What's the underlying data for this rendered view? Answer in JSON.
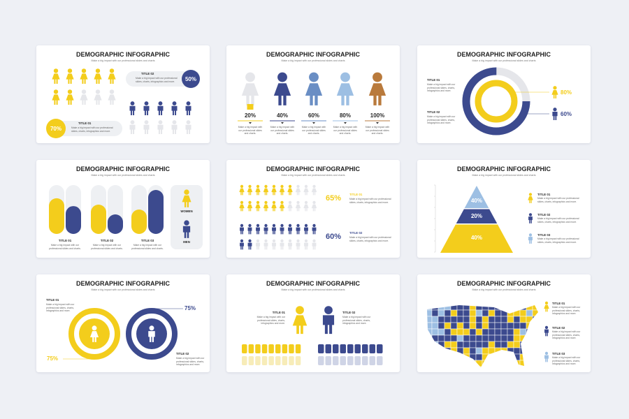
{
  "slides": [
    {
      "title": "DEMOGRAPHIC INFOGRAPHIC",
      "subtitle": "Make a big impact with our professional slides and charts",
      "titles": [
        "TITLE 02",
        "TITLE 01"
      ],
      "texts": [
        "Make a big impact with our professional slides, charts, infographics and more.",
        "Make a big impact with our professional slides, charts, infographics and more."
      ],
      "percents": [
        "50%",
        "70%"
      ]
    },
    {
      "title": "DEMOGRAPHIC INFOGRAPHIC",
      "subtitle": "Make a big impact with our professional slides and charts",
      "percents": [
        "20%",
        "40%",
        "60%",
        "80%",
        "100%"
      ],
      "texts": [
        "Make a big impact with our professional slides and charts.",
        "Make a big impact with our professional slides and charts.",
        "Make a big impact with our professional slides and charts.",
        "Make a big impact with our professional slides and charts.",
        "Make a big impact with our professional slides and charts."
      ]
    },
    {
      "title": "DEMOGRAPHIC INFOGRAPHIC",
      "subtitle": "Make a big impact with our professional slides and charts",
      "titles": [
        "TITLE 01",
        "TITLE 02"
      ],
      "texts": [
        "Make a big impact with our professional slides, charts, infographics and more.",
        "Make a big impact with our professional slides, charts, infographics and more."
      ],
      "percents": [
        "80%",
        "60%"
      ]
    },
    {
      "title": "DEMOGRAPHIC INFOGRAPHIC",
      "subtitle": "Make a big impact with our professional slides and charts",
      "titles": [
        "TITLE 01",
        "TITLE 02",
        "TITLE 03"
      ],
      "texts": [
        "Make a big impact with our professional slides and charts.",
        "Make a big impact with our professional slides and charts.",
        "Make a big impact with our professional slides and charts."
      ],
      "legend": [
        "WOMEN",
        "MEN"
      ]
    },
    {
      "title": "DEMOGRAPHIC INFOGRAPHIC",
      "subtitle": "Make a big impact with our professional slides and charts",
      "percents": [
        "65%",
        "60%"
      ],
      "titles": [
        "TITLE 01",
        "TITLE 02"
      ],
      "texts": [
        "Make a big impact with our professional slides, charts, infographics and more.",
        "Make a big impact with our professional slides, charts, infographics and more."
      ]
    },
    {
      "title": "DEMOGRAPHIC INFOGRAPHIC",
      "subtitle": "Make a big impact with our professional slides and charts",
      "percents": [
        "40%",
        "20%",
        "40%"
      ],
      "titles": [
        "TITLE 01",
        "TITLE 02",
        "TITLE 03"
      ],
      "texts": [
        "Make a big impact with our professional slides, charts, infographics and more.",
        "Make a big impact with our professional slides, charts, infographics and more.",
        "Make a big impact with our professional slides, charts, infographics and more."
      ]
    },
    {
      "title": "DEMOGRAPHIC INFOGRAPHIC",
      "subtitle": "Make a big impact with our professional slides and charts",
      "titles": [
        "TITLE 01",
        "TITLE 02"
      ],
      "texts": [
        "Make a big impact with our professional slides, charts, infographics and more.",
        "Make a big impact with our professional slides, charts, infographics and more."
      ],
      "percents": [
        "75%",
        "75%"
      ]
    },
    {
      "title": "DEMOGRAPHIC INFOGRAPHIC",
      "subtitle": "Make a big impact with our professional slides and charts",
      "titles": [
        "TITLE 01",
        "TITLE 02"
      ],
      "texts": [
        "Make a big impact with our professional slides, charts, infographics and more.",
        "Make a big impact with our professional slides, charts, infographics and more."
      ]
    },
    {
      "title": "DEMOGRAPHIC INFOGRAPHIC",
      "subtitle": "Make a big impact with our professional slides and charts",
      "titles": [
        "TITLE 01",
        "TITLE 02",
        "TITLE 03"
      ],
      "texts": [
        "Make a big impact with our professional slides, charts, infographics and more.",
        "Make a big impact with our professional slides, charts, infographics and more.",
        "Make a big impact with our professional slides, charts, infographics and more."
      ]
    }
  ]
}
